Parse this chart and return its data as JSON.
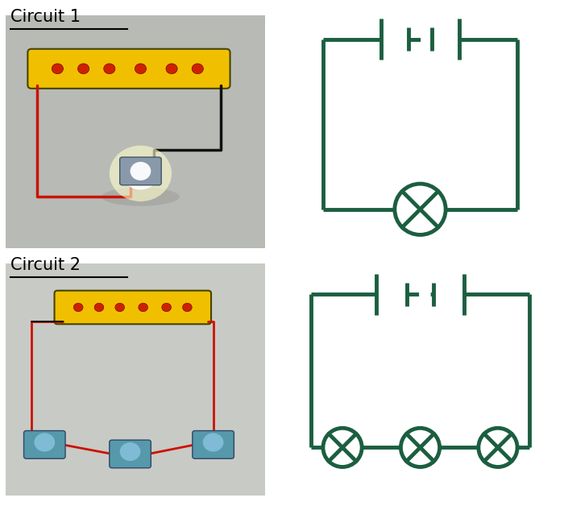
{
  "bg_color": "#ffffff",
  "circuit_color": "#1b5e40",
  "lw": 3.5,
  "title1": "Circuit 1",
  "title2": "Circuit 2",
  "title_fontsize": 15,
  "photo1_bg": "#c8c8c0",
  "photo2_bg": "#d8d8d0",
  "battery_color": "#f5c400",
  "wire_red": "#cc1100",
  "wire_black": "#111111",
  "bulb_glow": "#ffffcc",
  "layout": {
    "fig_w": 7.0,
    "fig_h": 6.28,
    "dpi": 100
  }
}
